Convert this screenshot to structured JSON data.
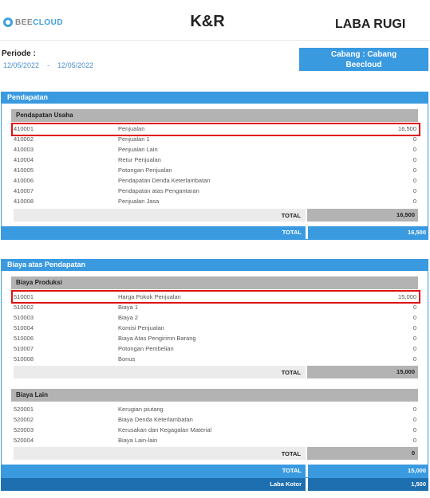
{
  "header": {
    "logo_bee": "BEE",
    "logo_cloud": "CLOUD",
    "company": "K&R",
    "title": "LABA RUGI",
    "periode_label": "Periode :",
    "periode_start": "12/05/2022",
    "periode_sep": "-",
    "periode_end": "12/05/2022",
    "cabang_line1": "Cabang : Cabang",
    "cabang_line2": "Beecloud"
  },
  "pendapatan": {
    "title": "Pendapatan",
    "group": {
      "title": "Pendapatan Usaha",
      "rows": [
        {
          "code": "410001",
          "name": "Penjualan",
          "value": "16,500"
        },
        {
          "code": "410002",
          "name": "Penjualan 1",
          "value": "0"
        },
        {
          "code": "410003",
          "name": "Penjualan Lain",
          "value": "0"
        },
        {
          "code": "410004",
          "name": "Retur Penjualan",
          "value": "0"
        },
        {
          "code": "410005",
          "name": "Potongan Penjualan",
          "value": "0"
        },
        {
          "code": "410006",
          "name": "Pendapatan Denda Keterlambatan",
          "value": "0"
        },
        {
          "code": "410007",
          "name": "Pendapatan atas Pengantaran",
          "value": "0"
        },
        {
          "code": "410008",
          "name": "Penjualan Jasa",
          "value": "0"
        }
      ],
      "total_label": "TOTAL",
      "total_value": "16,500"
    },
    "total_label": "TOTAL",
    "total_value": "16,500"
  },
  "biaya": {
    "title": "Biaya atas Pendapatan",
    "produksi": {
      "title": "Biaya Produksi",
      "rows": [
        {
          "code": "510001",
          "name": "Harga Pokok Penjualan",
          "value": "15,000"
        },
        {
          "code": "510002",
          "name": "Biaya 1",
          "value": "0"
        },
        {
          "code": "510003",
          "name": "Biaya 2",
          "value": "0"
        },
        {
          "code": "510004",
          "name": "Komisi Penjualan",
          "value": "0"
        },
        {
          "code": "510006",
          "name": "Biaya Atas Pengirimn Barang",
          "value": "0"
        },
        {
          "code": "510007",
          "name": "Potongan Pembelian",
          "value": "0"
        },
        {
          "code": "510008",
          "name": "Bonus",
          "value": "0"
        }
      ],
      "total_label": "TOTAL",
      "total_value": "15,000"
    },
    "lain": {
      "title": "Biaya Lain",
      "rows": [
        {
          "code": "520001",
          "name": "Kerugian piutang",
          "value": "0"
        },
        {
          "code": "520002",
          "name": "Biaya Denda Keterlambatan",
          "value": "0"
        },
        {
          "code": "520003",
          "name": "Kerusakan dan Kegagalan Material",
          "value": "0"
        },
        {
          "code": "520004",
          "name": "Biaya Lain-lain",
          "value": "0"
        }
      ],
      "total_label": "TOTAL",
      "total_value": "0"
    },
    "total_label": "TOTAL",
    "total_value": "15,000"
  },
  "laba_kotor": {
    "label": "Laba Kotor",
    "value": "1,500"
  },
  "colors": {
    "accent": "#3a9ae0",
    "highlight": "#e01010"
  }
}
